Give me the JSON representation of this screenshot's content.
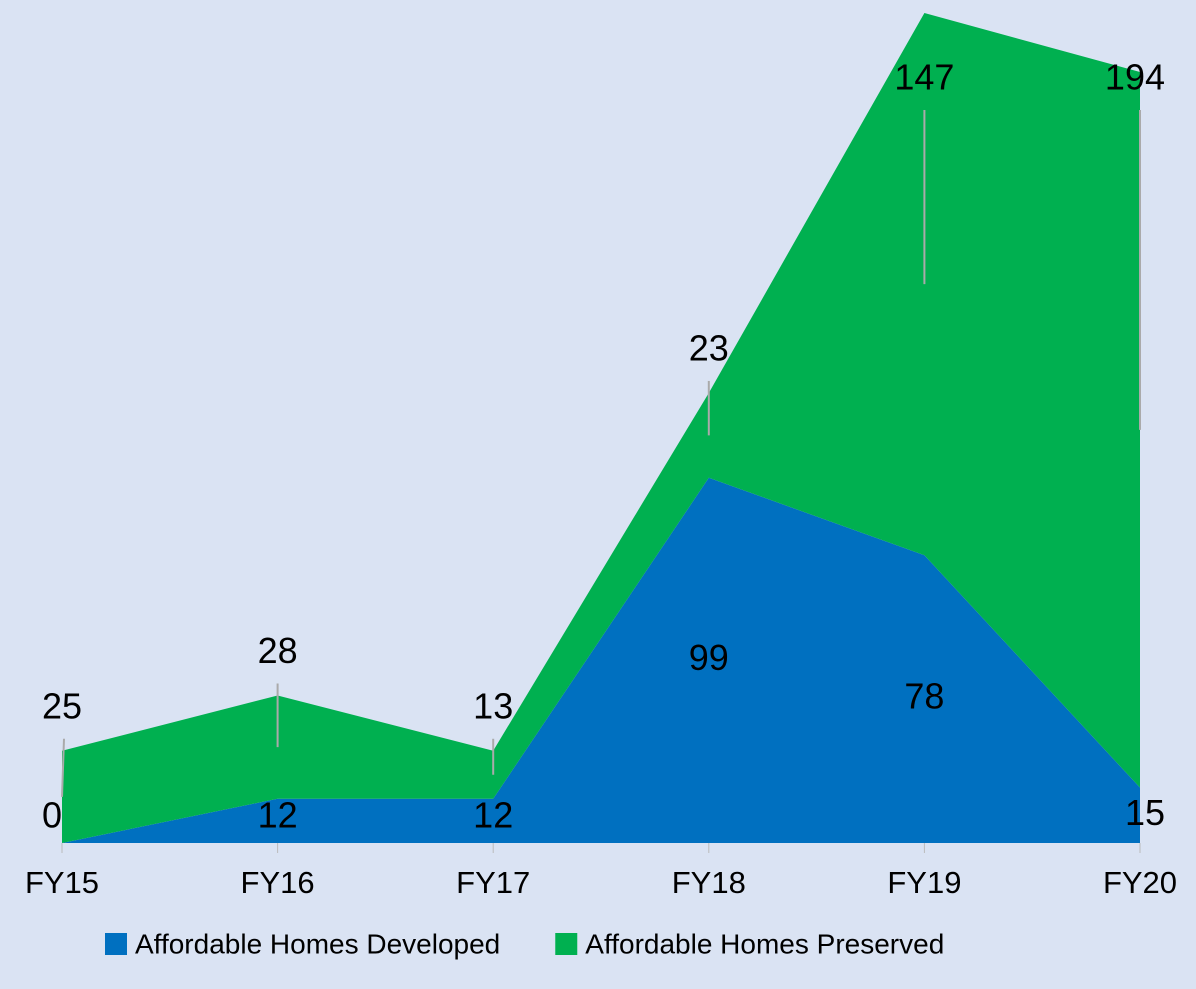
{
  "chart_data": {
    "type": "area",
    "stacked": true,
    "categories": [
      "FY15",
      "FY16",
      "FY17",
      "FY18",
      "FY19",
      "FY20"
    ],
    "series": [
      {
        "name": "Affordable Homes Developed",
        "color": "#0070c0",
        "values": [
          0,
          12,
          12,
          99,
          78,
          15
        ]
      },
      {
        "name": "Affordable Homes Preserved",
        "color": "#00b050",
        "values": [
          25,
          28,
          13,
          23,
          147,
          194
        ]
      }
    ],
    "legend": "bottom"
  }
}
